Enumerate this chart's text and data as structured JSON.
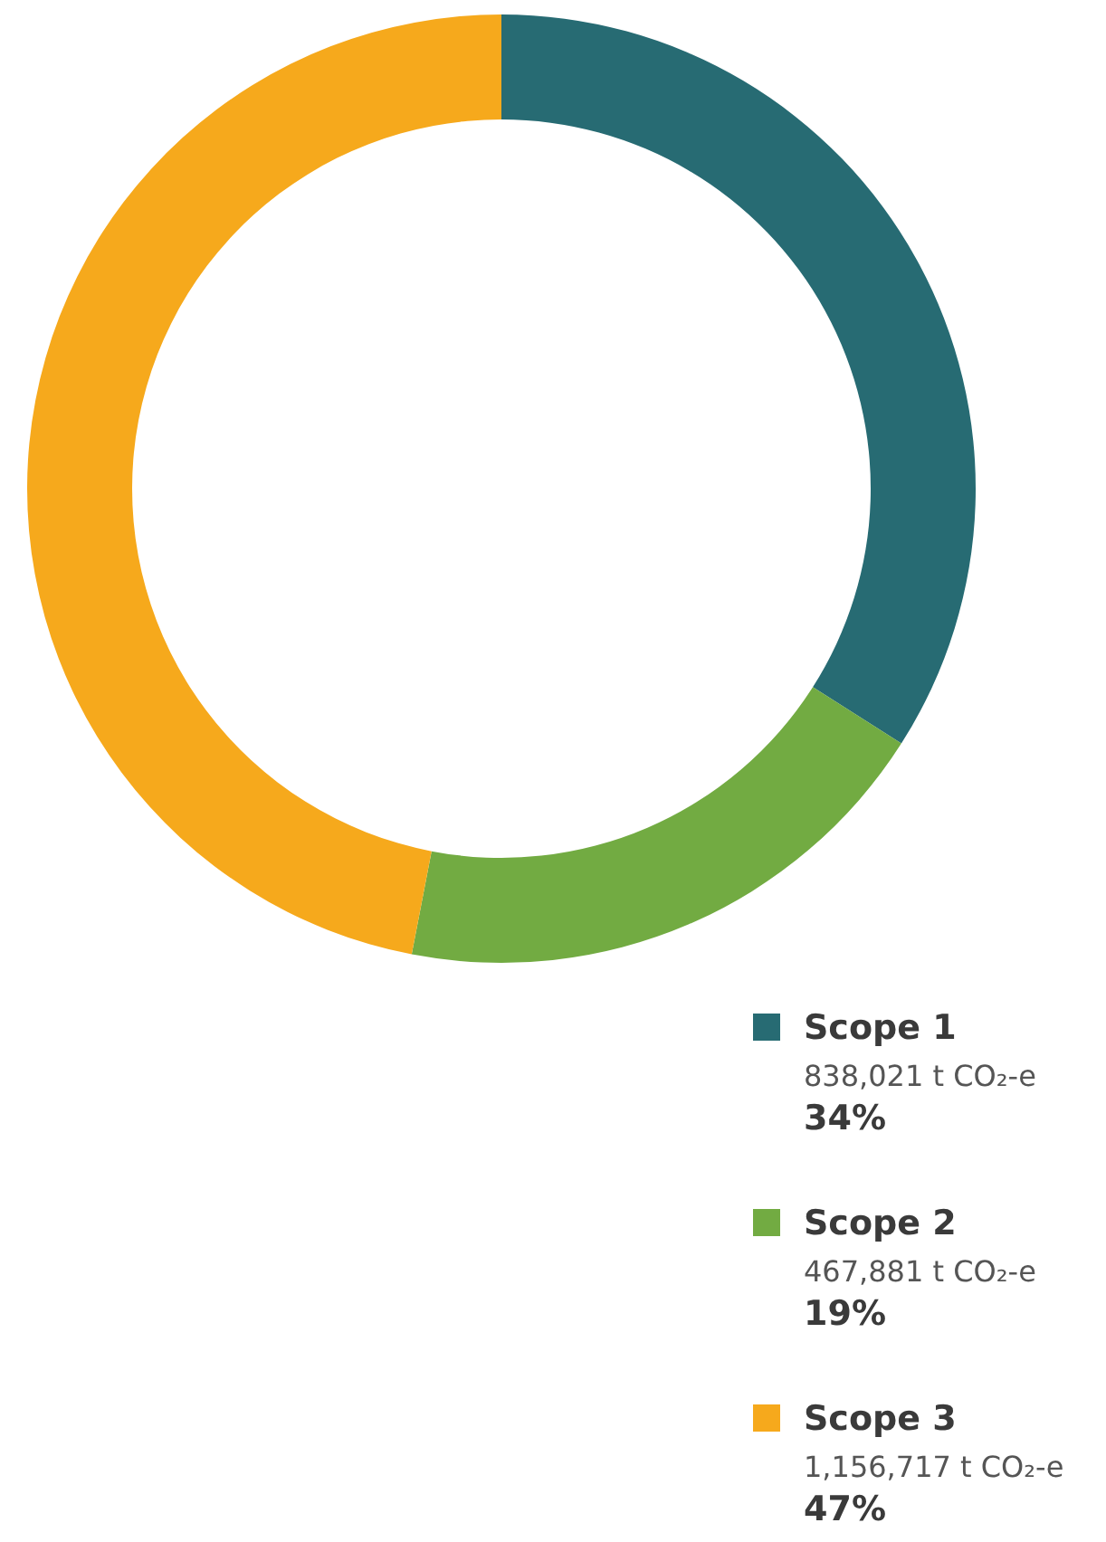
{
  "chart_data": {
    "type": "donut",
    "categories": [
      "Scope 1",
      "Scope 2",
      "Scope 3"
    ],
    "values": [
      838021,
      467881,
      1156717
    ],
    "colors": [
      "#276b73",
      "#72ab42",
      "#f6a91c"
    ],
    "value_labels": [
      "838,021 t CO₂-e\n34%",
      "467,881 t CO₂-e\n19%",
      "1,156,717 t CO₂-e\n47%"
    ],
    "legend": "bottom right"
  }
}
